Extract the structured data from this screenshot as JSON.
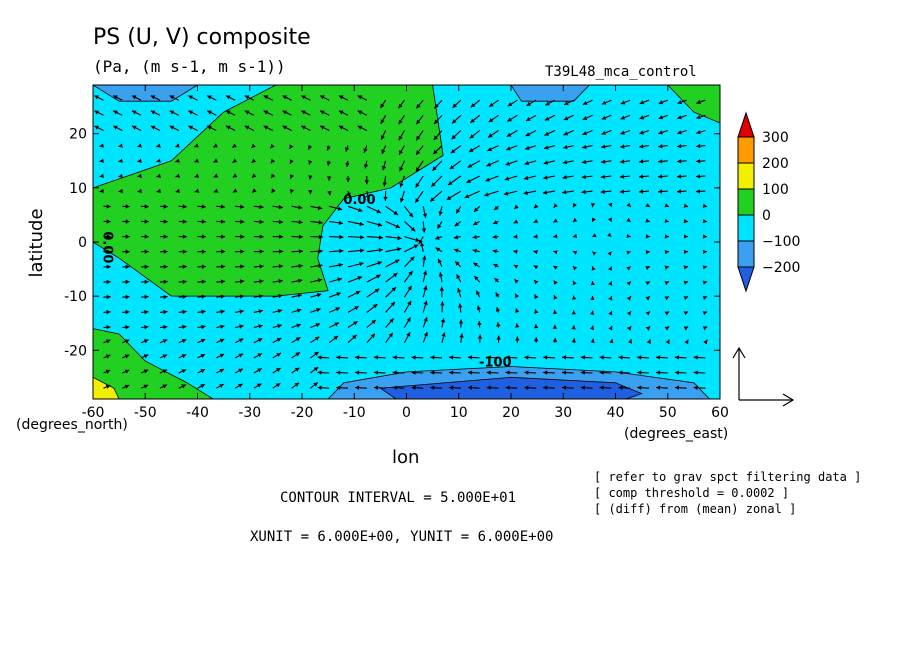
{
  "chart_data": {
    "type": "heatmap",
    "title": "PS (U, V) composite",
    "subtitle": "(Pa, (m s-1, m s-1))",
    "run_label": "T39L48_mca_control",
    "xlabel": "lon",
    "ylabel": "latitude",
    "x_unit_label": "(degrees_east)",
    "y_unit_label": "(degrees_north)",
    "xlim": [
      -60,
      60
    ],
    "ylim": [
      -29,
      29
    ],
    "x_ticks": [
      -60,
      -50,
      -40,
      -30,
      -20,
      -10,
      0,
      10,
      20,
      30,
      40,
      50,
      60
    ],
    "y_ticks": [
      -20,
      -10,
      0,
      10,
      20
    ],
    "x_tick_labels": [
      "-60",
      "-50",
      "-40",
      "-30",
      "-20",
      "-10",
      "0",
      "10",
      "20",
      "30",
      "40",
      "50",
      "60"
    ],
    "y_tick_labels": [
      "-20",
      "-10",
      "0",
      "10",
      "20"
    ],
    "colorbar": {
      "levels": [
        -200,
        -100,
        0,
        100,
        200,
        300
      ],
      "labels": [
        "300",
        "200",
        "100",
        "0",
        "−100",
        "−200"
      ],
      "colors": [
        "#1f5fe0",
        "#3aa0f0",
        "#00e5ff",
        "#22d022",
        "#f0f000",
        "#ff9a00",
        "#e00000"
      ]
    },
    "contour_labels": [
      {
        "text": "0.00",
        "lon": -9,
        "lat": 7
      },
      {
        "text": "0.00",
        "lon": -58,
        "lat": -1,
        "rotate": 90
      },
      {
        "text": "-100",
        "lon": 17,
        "lat": -23
      }
    ],
    "regions": [
      {
        "level": "0 to 100",
        "color": "#22d022",
        "points": [
          [
            -60,
            10
          ],
          [
            -45,
            15
          ],
          [
            -35,
            24
          ],
          [
            -25,
            29
          ],
          [
            5,
            29
          ],
          [
            7,
            16
          ],
          [
            -3,
            10
          ],
          [
            -12,
            8
          ],
          [
            -16,
            3
          ],
          [
            -17,
            -3
          ],
          [
            -15,
            -9
          ],
          [
            -25,
            -10
          ],
          [
            -45,
            -10
          ],
          [
            -55,
            -3
          ],
          [
            -60,
            0
          ]
        ]
      },
      {
        "level": "0 to 100",
        "color": "#22d022",
        "points": [
          [
            -60,
            -16
          ],
          [
            -55,
            -17
          ],
          [
            -50,
            -22
          ],
          [
            -42,
            -26
          ],
          [
            -37,
            -29
          ],
          [
            -60,
            -29
          ]
        ]
      },
      {
        "level": "0 to 100",
        "color": "#22d022",
        "points": [
          [
            50,
            29
          ],
          [
            60,
            29
          ],
          [
            60,
            22
          ],
          [
            55,
            24
          ]
        ]
      },
      {
        "level": "100 to 200",
        "color": "#f0f000",
        "points": [
          [
            -60,
            -25
          ],
          [
            -56,
            -27
          ],
          [
            -55,
            -29
          ],
          [
            -60,
            -29
          ]
        ]
      },
      {
        "level": "-200 to -100",
        "color": "#3aa0f0",
        "points": [
          [
            -60,
            29
          ],
          [
            -40,
            29
          ],
          [
            -45,
            26
          ],
          [
            -55,
            26
          ]
        ]
      },
      {
        "level": "-200 to -100",
        "color": "#3aa0f0",
        "points": [
          [
            20,
            29
          ],
          [
            35,
            29
          ],
          [
            32,
            26
          ],
          [
            22,
            26
          ]
        ]
      },
      {
        "level": "-200 to -100",
        "color": "#3aa0f0",
        "points": [
          [
            -12,
            -26
          ],
          [
            0,
            -24
          ],
          [
            20,
            -23
          ],
          [
            40,
            -24
          ],
          [
            55,
            -26
          ],
          [
            58,
            -29
          ],
          [
            -15,
            -29
          ]
        ]
      },
      {
        "level": "-300 to -200",
        "color": "#1f5fe0",
        "points": [
          [
            -5,
            -27
          ],
          [
            20,
            -25
          ],
          [
            40,
            -26
          ],
          [
            45,
            -28
          ],
          [
            42,
            -29
          ],
          [
            -2,
            -29
          ]
        ]
      }
    ],
    "vector_field": {
      "description": "(U, V) wind composite; strong convergence toward lon 0, lat 0",
      "center": [
        2,
        0
      ]
    },
    "reference_vector": {
      "xunit": "6.000E+00",
      "yunit": "6.000E+00"
    }
  },
  "footer": {
    "contour_interval": "CONTOUR INTERVAL = 5.000E+01",
    "units": "XUNIT = 6.000E+00, YUNIT = 6.000E+00",
    "notes": [
      "[ refer to grav spct filtering data ]",
      "[ comp threshold = 0.0002 ]",
      "[ (diff) from (mean) zonal ]"
    ]
  }
}
